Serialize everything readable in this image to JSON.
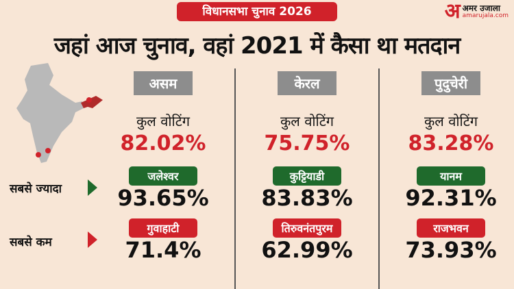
{
  "tag": "विधानसभा चुनाव 2026",
  "logo": {
    "mark": "अ",
    "name": "अमर उजाला",
    "url": "amarujala.com"
  },
  "title": "जहां आज चुनाव, वहां 2021 में कैसा था मतदान",
  "labels": {
    "total": "कुल वोटिंग",
    "highest": "सबसे ज्यादा",
    "lowest": "सबसे कम"
  },
  "colors": {
    "red": "#d0222a",
    "green": "#1f6a2c",
    "gray": "#8d8d8d",
    "background": "#f8e6d6"
  },
  "states": [
    {
      "name": "असम",
      "total": "82.02%",
      "highest_place": "जलेश्वर",
      "highest": "93.65%",
      "lowest_place": "गुवाहाटी",
      "lowest": "71.4%"
    },
    {
      "name": "केरल",
      "total": "75.75%",
      "highest_place": "कुट्टियाडी",
      "highest": "83.83%",
      "lowest_place": "तिरुवनंतपुरम",
      "lowest": "62.99%"
    },
    {
      "name": "पुदुचेरी",
      "total": "83.28%",
      "highest_place": "यानम",
      "highest": "92.31%",
      "lowest_place": "राजभवन",
      "lowest": "73.93%"
    }
  ]
}
